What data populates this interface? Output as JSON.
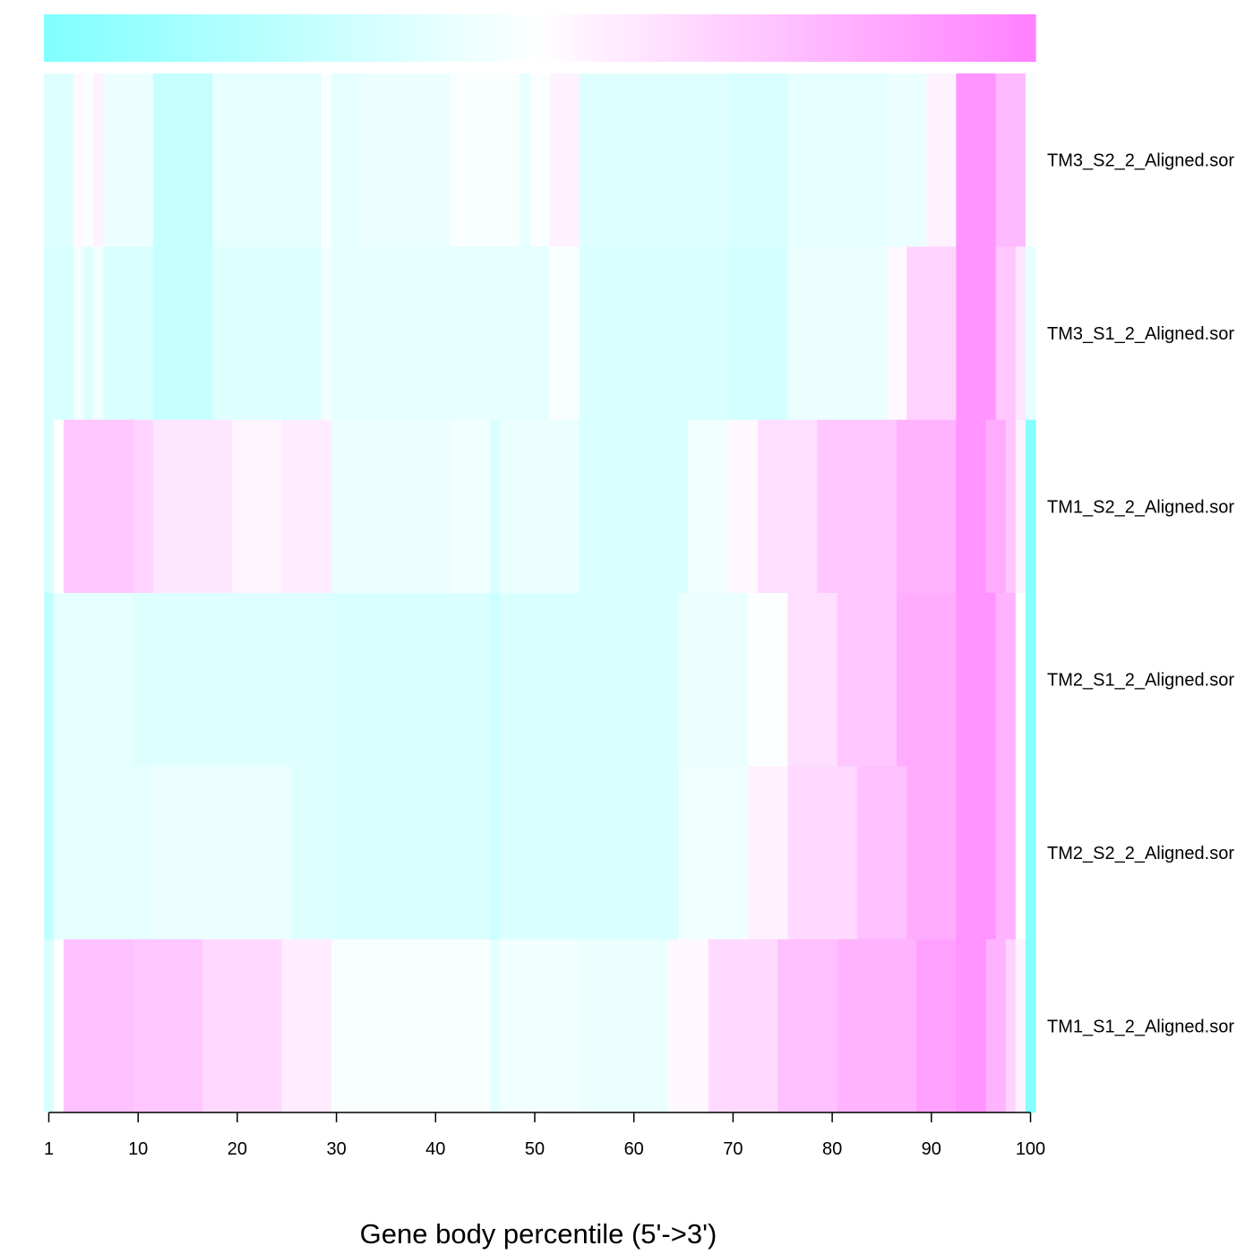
{
  "chart_data": {
    "type": "heatmap",
    "xlabel": "Gene body percentile (5'->3')",
    "x_ticks": [
      1,
      10,
      20,
      30,
      40,
      50,
      60,
      70,
      80,
      90,
      100
    ],
    "x_range": [
      1,
      100
    ],
    "colormap": {
      "low": "#80ffff",
      "mid": "#ffffff",
      "high": "#ff80ff"
    },
    "legend": "top",
    "rows": [
      {
        "label": "TM3_S2_2_Aligned.sor",
        "segments": [
          {
            "from": 1,
            "to": 3,
            "v": -0.25
          },
          {
            "from": 4,
            "to": 4,
            "v": 0.05
          },
          {
            "from": 5,
            "to": 5,
            "v": -0.05
          },
          {
            "from": 6,
            "to": 6,
            "v": 0.1
          },
          {
            "from": 7,
            "to": 11,
            "v": -0.15
          },
          {
            "from": 12,
            "to": 17,
            "v": -0.45
          },
          {
            "from": 18,
            "to": 28,
            "v": -0.2
          },
          {
            "from": 29,
            "to": 29,
            "v": -0.05
          },
          {
            "from": 30,
            "to": 32,
            "v": -0.2
          },
          {
            "from": 33,
            "to": 41,
            "v": -0.15
          },
          {
            "from": 42,
            "to": 48,
            "v": -0.05
          },
          {
            "from": 49,
            "to": 49,
            "v": -0.2
          },
          {
            "from": 50,
            "to": 51,
            "v": -0.05
          },
          {
            "from": 52,
            "to": 54,
            "v": 0.1
          },
          {
            "from": 55,
            "to": 69,
            "v": -0.25
          },
          {
            "from": 70,
            "to": 75,
            "v": -0.3
          },
          {
            "from": 76,
            "to": 85,
            "v": -0.2
          },
          {
            "from": 86,
            "to": 89,
            "v": -0.15
          },
          {
            "from": 90,
            "to": 92,
            "v": 0.1
          },
          {
            "from": 93,
            "to": 96,
            "v": 0.85
          },
          {
            "from": 97,
            "to": 99,
            "v": 0.55
          },
          {
            "from": 100,
            "to": 100,
            "v": -0.05
          }
        ]
      },
      {
        "label": "TM3_S1_2_Aligned.sor",
        "segments": [
          {
            "from": 1,
            "to": 3,
            "v": -0.3
          },
          {
            "from": 4,
            "to": 4,
            "v": -0.1
          },
          {
            "from": 5,
            "to": 5,
            "v": -0.25
          },
          {
            "from": 6,
            "to": 6,
            "v": -0.1
          },
          {
            "from": 7,
            "to": 11,
            "v": -0.3
          },
          {
            "from": 12,
            "to": 17,
            "v": -0.45
          },
          {
            "from": 18,
            "to": 28,
            "v": -0.25
          },
          {
            "from": 29,
            "to": 29,
            "v": -0.1
          },
          {
            "from": 30,
            "to": 41,
            "v": -0.2
          },
          {
            "from": 42,
            "to": 51,
            "v": -0.2
          },
          {
            "from": 52,
            "to": 54,
            "v": -0.05
          },
          {
            "from": 55,
            "to": 69,
            "v": -0.3
          },
          {
            "from": 70,
            "to": 75,
            "v": -0.35
          },
          {
            "from": 76,
            "to": 85,
            "v": -0.15
          },
          {
            "from": 86,
            "to": 87,
            "v": 0.05
          },
          {
            "from": 88,
            "to": 92,
            "v": 0.35
          },
          {
            "from": 93,
            "to": 96,
            "v": 0.85
          },
          {
            "from": 97,
            "to": 98,
            "v": 0.45
          },
          {
            "from": 99,
            "to": 99,
            "v": 0.2
          },
          {
            "from": 100,
            "to": 100,
            "v": -0.2
          }
        ]
      },
      {
        "label": "TM1_S2_2_Aligned.sor",
        "segments": [
          {
            "from": 1,
            "to": 1,
            "v": -0.3
          },
          {
            "from": 2,
            "to": 2,
            "v": 0.0
          },
          {
            "from": 3,
            "to": 9,
            "v": 0.45
          },
          {
            "from": 10,
            "to": 11,
            "v": 0.35
          },
          {
            "from": 12,
            "to": 19,
            "v": 0.2
          },
          {
            "from": 20,
            "to": 24,
            "v": 0.08
          },
          {
            "from": 25,
            "to": 29,
            "v": 0.15
          },
          {
            "from": 30,
            "to": 41,
            "v": -0.15
          },
          {
            "from": 42,
            "to": 45,
            "v": -0.1
          },
          {
            "from": 46,
            "to": 46,
            "v": -0.3
          },
          {
            "from": 47,
            "to": 54,
            "v": -0.15
          },
          {
            "from": 55,
            "to": 65,
            "v": -0.3
          },
          {
            "from": 66,
            "to": 69,
            "v": -0.1
          },
          {
            "from": 70,
            "to": 72,
            "v": 0.05
          },
          {
            "from": 73,
            "to": 78,
            "v": 0.25
          },
          {
            "from": 79,
            "to": 86,
            "v": 0.45
          },
          {
            "from": 87,
            "to": 92,
            "v": 0.6
          },
          {
            "from": 93,
            "to": 95,
            "v": 0.85
          },
          {
            "from": 96,
            "to": 97,
            "v": 0.65
          },
          {
            "from": 98,
            "to": 98,
            "v": 0.45
          },
          {
            "from": 99,
            "to": 99,
            "v": 0.1
          },
          {
            "from": 100,
            "to": 100,
            "v": -0.95
          }
        ]
      },
      {
        "label": "TM2_S1_2_Aligned.sor",
        "segments": [
          {
            "from": 1,
            "to": 1,
            "v": -0.5
          },
          {
            "from": 2,
            "to": 9,
            "v": -0.2
          },
          {
            "from": 10,
            "to": 29,
            "v": -0.25
          },
          {
            "from": 30,
            "to": 45,
            "v": -0.3
          },
          {
            "from": 46,
            "to": 46,
            "v": -0.4
          },
          {
            "from": 47,
            "to": 54,
            "v": -0.3
          },
          {
            "from": 55,
            "to": 64,
            "v": -0.3
          },
          {
            "from": 65,
            "to": 71,
            "v": -0.15
          },
          {
            "from": 72,
            "to": 75,
            "v": -0.02
          },
          {
            "from": 76,
            "to": 80,
            "v": 0.25
          },
          {
            "from": 81,
            "to": 86,
            "v": 0.45
          },
          {
            "from": 87,
            "to": 92,
            "v": 0.65
          },
          {
            "from": 93,
            "to": 96,
            "v": 0.85
          },
          {
            "from": 97,
            "to": 98,
            "v": 0.6
          },
          {
            "from": 99,
            "to": 99,
            "v": 0.0
          },
          {
            "from": 100,
            "to": 100,
            "v": -0.95
          }
        ]
      },
      {
        "label": "TM2_S2_2_Aligned.sor",
        "segments": [
          {
            "from": 1,
            "to": 1,
            "v": -0.5
          },
          {
            "from": 2,
            "to": 11,
            "v": -0.2
          },
          {
            "from": 12,
            "to": 25,
            "v": -0.15
          },
          {
            "from": 26,
            "to": 29,
            "v": -0.25
          },
          {
            "from": 30,
            "to": 45,
            "v": -0.3
          },
          {
            "from": 46,
            "to": 46,
            "v": -0.4
          },
          {
            "from": 47,
            "to": 54,
            "v": -0.3
          },
          {
            "from": 55,
            "to": 64,
            "v": -0.3
          },
          {
            "from": 65,
            "to": 71,
            "v": -0.12
          },
          {
            "from": 72,
            "to": 75,
            "v": 0.1
          },
          {
            "from": 76,
            "to": 82,
            "v": 0.3
          },
          {
            "from": 83,
            "to": 87,
            "v": 0.5
          },
          {
            "from": 88,
            "to": 92,
            "v": 0.65
          },
          {
            "from": 93,
            "to": 96,
            "v": 0.85
          },
          {
            "from": 97,
            "to": 98,
            "v": 0.6
          },
          {
            "from": 99,
            "to": 99,
            "v": 0.0
          },
          {
            "from": 100,
            "to": 100,
            "v": -0.95
          }
        ]
      },
      {
        "label": "TM1_S1_2_Aligned.sor",
        "segments": [
          {
            "from": 1,
            "to": 1,
            "v": -0.3
          },
          {
            "from": 2,
            "to": 2,
            "v": 0.0
          },
          {
            "from": 3,
            "to": 9,
            "v": 0.5
          },
          {
            "from": 10,
            "to": 16,
            "v": 0.45
          },
          {
            "from": 17,
            "to": 24,
            "v": 0.3
          },
          {
            "from": 25,
            "to": 29,
            "v": 0.15
          },
          {
            "from": 30,
            "to": 45,
            "v": -0.05
          },
          {
            "from": 46,
            "to": 46,
            "v": -0.2
          },
          {
            "from": 47,
            "to": 54,
            "v": -0.1
          },
          {
            "from": 55,
            "to": 63,
            "v": -0.15
          },
          {
            "from": 64,
            "to": 67,
            "v": 0.05
          },
          {
            "from": 68,
            "to": 74,
            "v": 0.3
          },
          {
            "from": 75,
            "to": 80,
            "v": 0.5
          },
          {
            "from": 81,
            "to": 88,
            "v": 0.6
          },
          {
            "from": 89,
            "to": 92,
            "v": 0.75
          },
          {
            "from": 93,
            "to": 95,
            "v": 0.85
          },
          {
            "from": 96,
            "to": 97,
            "v": 0.6
          },
          {
            "from": 98,
            "to": 98,
            "v": 0.35
          },
          {
            "from": 99,
            "to": 99,
            "v": 0.1
          },
          {
            "from": 100,
            "to": 100,
            "v": -0.95
          }
        ]
      }
    ]
  }
}
